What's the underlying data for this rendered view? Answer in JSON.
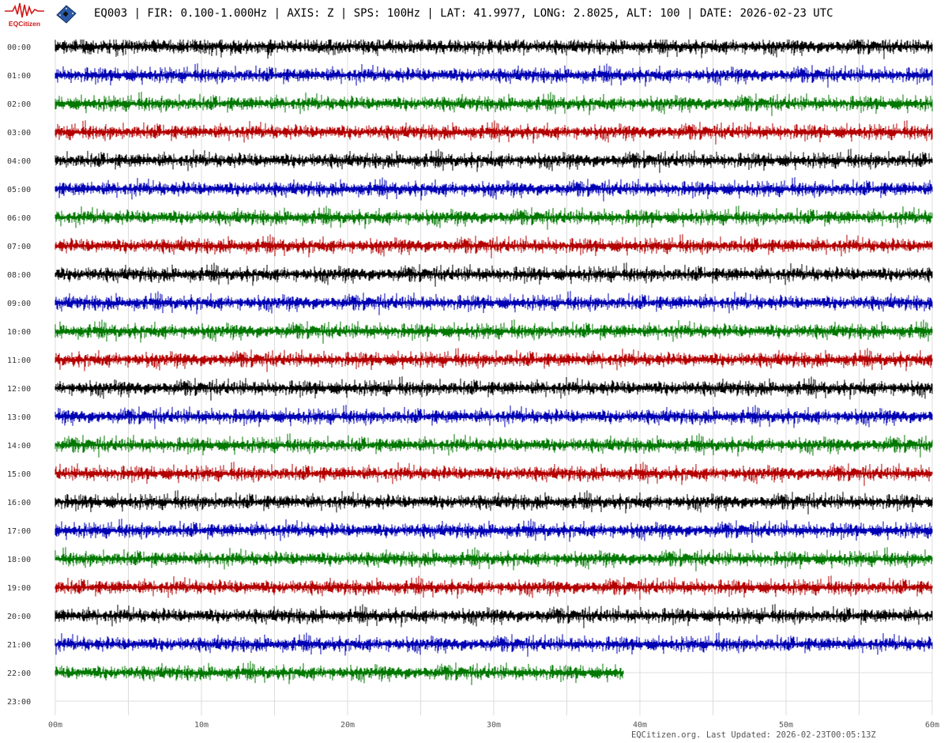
{
  "header": {
    "logo_text": "EQCitizen",
    "title": "EQ003 | FIR: 0.100-1.000Hz | AXIS: Z | SPS: 100Hz | LAT: 41.9977, LONG: 2.8025, ALT: 100 | DATE: 2026-02-23 UTC"
  },
  "footer": {
    "text": "EQCitizen.org. Last Updated: 2026-02-23T00:05:13Z"
  },
  "chart_data": {
    "type": "line",
    "subtype": "helicorder",
    "row_labels": [
      "00:00",
      "01:00",
      "02:00",
      "03:00",
      "04:00",
      "05:00",
      "06:00",
      "07:00",
      "08:00",
      "09:00",
      "10:00",
      "11:00",
      "12:00",
      "13:00",
      "14:00",
      "15:00",
      "16:00",
      "17:00",
      "18:00",
      "19:00",
      "20:00",
      "21:00",
      "22:00",
      "23:00"
    ],
    "x_ticks": [
      "00m",
      "10m",
      "20m",
      "30m",
      "40m",
      "50m",
      "60m"
    ],
    "xlim_minutes": [
      0,
      60
    ],
    "vertical_grid_every_minutes": 5,
    "grid": true,
    "trace_colors": [
      "#000000",
      "#0000b4",
      "#007800",
      "#b40000"
    ],
    "rows_with_data": 23,
    "last_row_end_minute": 38.9
  }
}
